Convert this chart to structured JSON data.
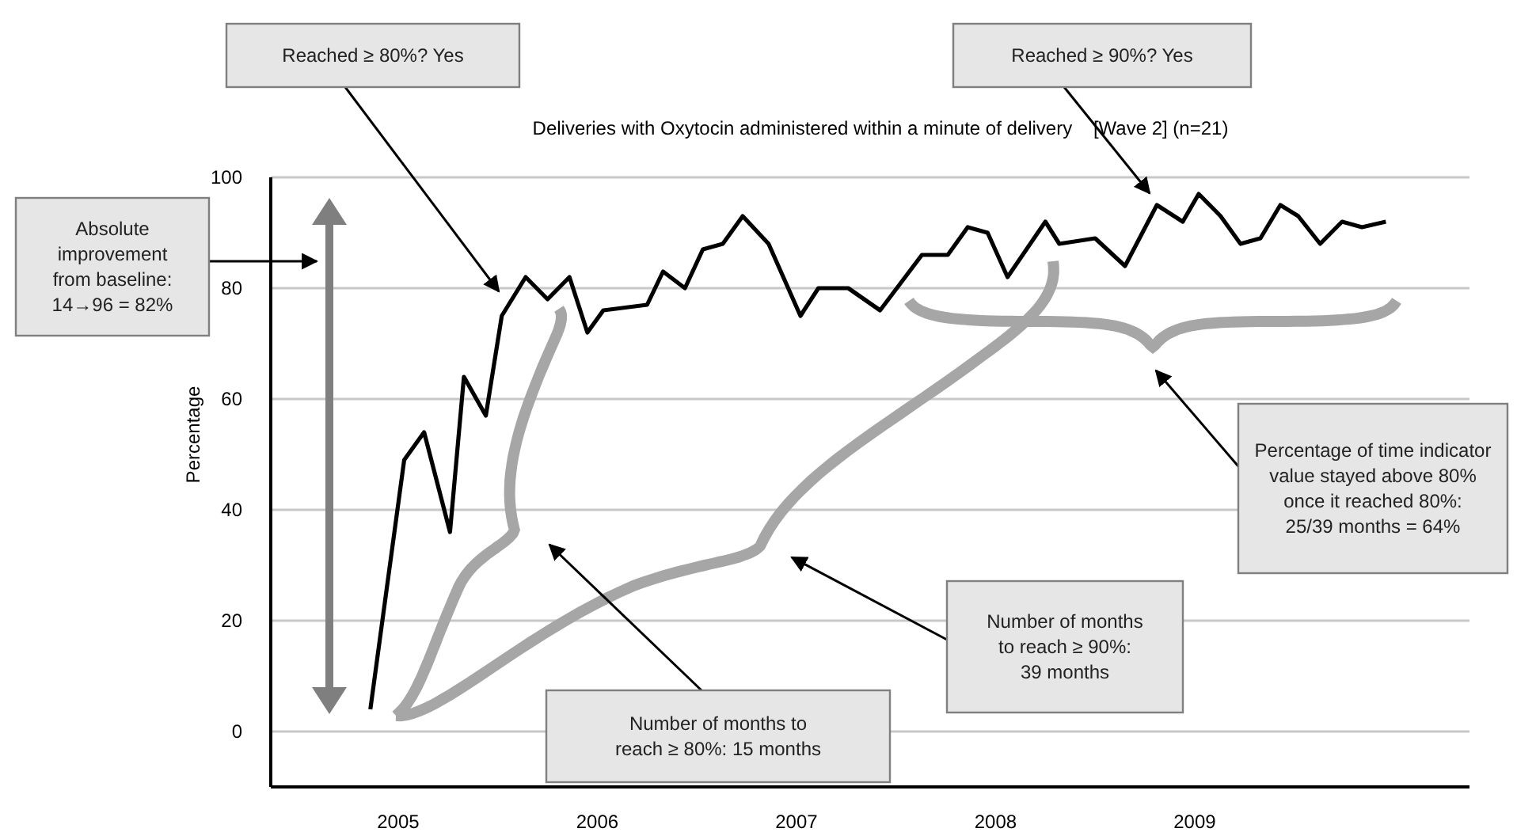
{
  "chart_data": {
    "type": "line",
    "title": "Deliveries with Oxytocin administered within a minute of delivery    [Wave 2] (n=21)",
    "ylabel": "Percentage",
    "xlim": [
      2004.36,
      2010.38
    ],
    "xticks": [
      2005,
      2006,
      2007,
      2008,
      2009
    ],
    "ylim": [
      -10,
      100
    ],
    "yticks": [
      0,
      20,
      40,
      60,
      80,
      100
    ],
    "grid": "y",
    "marker": "none",
    "line_style": "solid",
    "series": [
      {
        "color": "#000000",
        "x": [
          2004.86,
          2005.03,
          2005.13,
          2005.26,
          2005.33,
          2005.44,
          2005.52,
          2005.64,
          2005.75,
          2005.86,
          2005.95,
          2006.03,
          2006.25,
          2006.33,
          2006.44,
          2006.53,
          2006.63,
          2006.73,
          2006.86,
          2007.02,
          2007.11,
          2007.26,
          2007.42,
          2007.63,
          2007.76,
          2007.86,
          2007.96,
          2008.06,
          2008.25,
          2008.32,
          2008.5,
          2008.65,
          2008.81,
          2008.94,
          2009.02,
          2009.13,
          2009.23,
          2009.33,
          2009.43,
          2009.52,
          2009.63,
          2009.74,
          2009.84,
          2009.96
        ],
        "values": [
          4,
          49,
          54,
          36,
          64,
          57,
          75,
          82,
          78,
          82,
          72,
          76,
          77,
          83,
          80,
          87,
          88,
          93,
          88,
          75,
          80,
          80,
          76,
          86,
          86,
          91,
          90,
          82,
          92,
          88,
          89,
          84,
          95,
          92,
          97,
          93,
          88,
          89,
          95,
          93,
          88,
          92,
          91,
          92
        ]
      }
    ],
    "annotations": [
      "Reached ≥ 80%? Yes",
      "Reached ≥ 90%? Yes",
      "Absolute\nimprovement\nfrom baseline:\n14→96 = 82%",
      "Percentage of time indicator\nvalue stayed above 80%\nonce it reached 80%:\n25/39 months = 64%",
      "Number of months\nto reach ≥ 90%:\n39 months",
      "Number of months to\nreach ≥ 80%: 15 months"
    ]
  }
}
